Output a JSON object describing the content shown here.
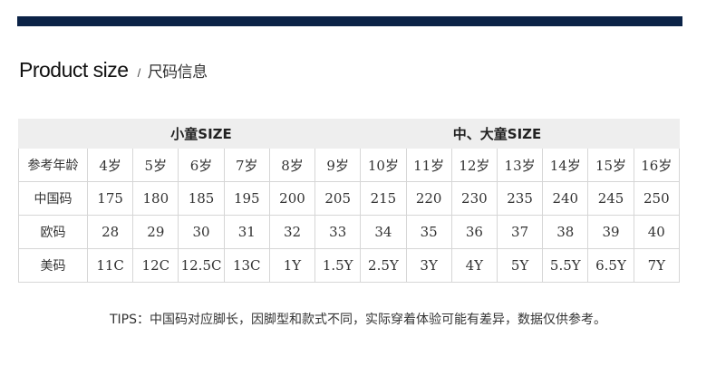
{
  "colors": {
    "top_bar": "#0b2347",
    "header_bg": "#eeeeee"
  },
  "title": {
    "en": "Product size",
    "separator": "/",
    "cn": "尺码信息"
  },
  "table": {
    "groups": [
      {
        "label": "小童SIZE"
      },
      {
        "label": "中、大童SIZE"
      }
    ],
    "rows": [
      {
        "label": "参考年龄",
        "cells": [
          "4岁",
          "5岁",
          "6岁",
          "7岁",
          "8岁",
          "9岁",
          "10岁",
          "11岁",
          "12岁",
          "13岁",
          "14岁",
          "15岁",
          "16岁"
        ]
      },
      {
        "label": "中国码",
        "cells": [
          "175",
          "180",
          "185",
          "195",
          "200",
          "205",
          "215",
          "220",
          "230",
          "235",
          "240",
          "245",
          "250"
        ]
      },
      {
        "label": "欧码",
        "cells": [
          "28",
          "29",
          "30",
          "31",
          "32",
          "33",
          "34",
          "35",
          "36",
          "37",
          "38",
          "39",
          "40"
        ]
      },
      {
        "label": "美码",
        "cells": [
          "11C",
          "12C",
          "12.5C",
          "13C",
          "1Y",
          "1.5Y",
          "2.5Y",
          "3Y",
          "4Y",
          "5Y",
          "5.5Y",
          "6.5Y",
          "7Y"
        ]
      }
    ]
  },
  "tips": "TIPS：中国码对应脚长，因脚型和款式不同，实际穿着体验可能有差异，数据仅供参考。"
}
